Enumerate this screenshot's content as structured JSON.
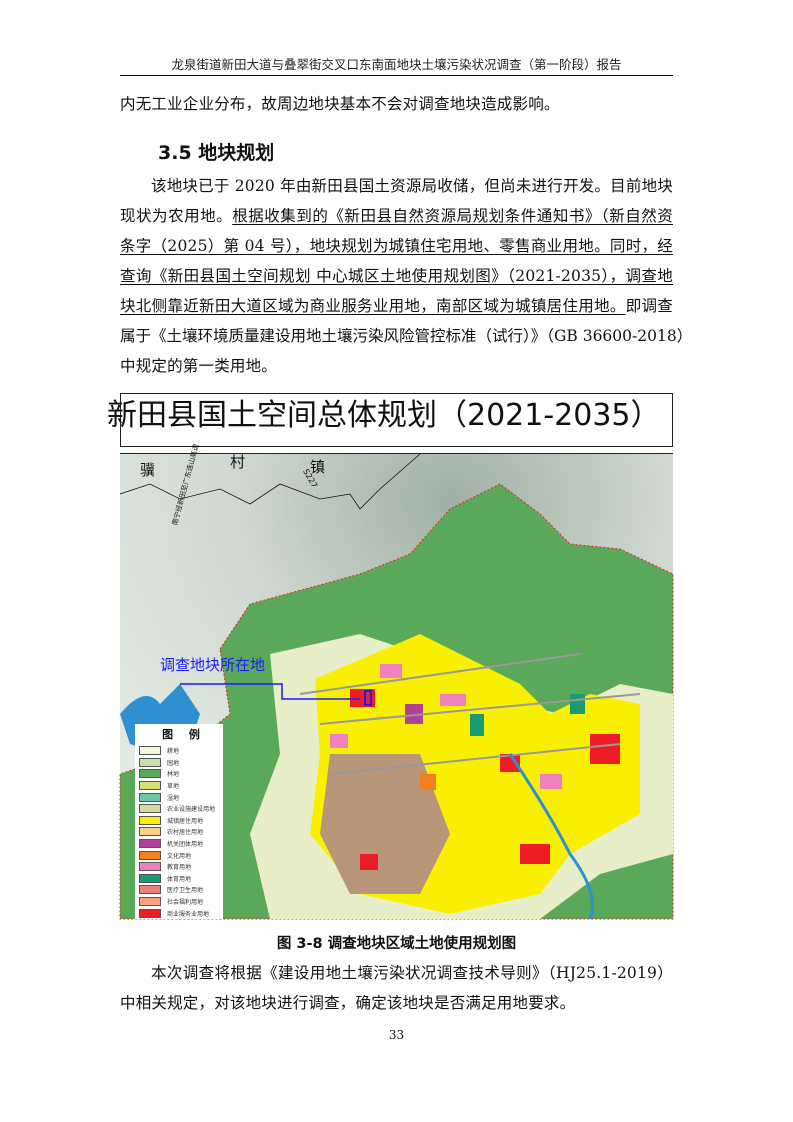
{
  "header": "龙泉街道新田大道与叠翠街交叉口东南面地块土壤污染状况调查（第一阶段）报告",
  "paragraph_top": "内无工业企业分布，故周边地块基本不会对调查地块造成影响。",
  "section_heading": "3.5 地块规划",
  "planning_paragraph": {
    "l1": "该地块已于 2020 年由新田县国土资源局收储，但尚未进行开发。目前地块",
    "l2a": "现状为农用地。",
    "l2b": "根据收集到的《新田县自然资源局规划条件通知书》（新自然资",
    "l3": "条字（2025）第 04 号），地块规划为城镇住宅用地、零售商业用地。同时，经",
    "l4": "查询《新田县国土空间规划 中心城区土地使用规划图》（2021-2035），调查地",
    "l5a": "块北侧靠近新田大道区域为商业服务业用地，南部区域为城镇居住用地。",
    "l5b": "即调查",
    "l6": "属于《土壤环境质量建设用地土壤污染风险管控标准（试行）》（GB 36600-2018）",
    "l7": "中规定的第一类用地。"
  },
  "figure": {
    "map_title": "新田县国土空间总体规划（2021-2035）",
    "place_labels": [
      "骥",
      "村",
      "镇"
    ],
    "road_label": "S227",
    "highway_label": "南宁经新田至广东连山高速",
    "site_label": "调查地块所在地",
    "site_label_color": "#1a1aff",
    "legend_title": "图 例",
    "legend": [
      {
        "label": "耕地",
        "color": "#f3f5dc"
      },
      {
        "label": "园地",
        "color": "#c5e0a5"
      },
      {
        "label": "林地",
        "color": "#5aa85a"
      },
      {
        "label": "草地",
        "color": "#d3e07a"
      },
      {
        "label": "湿地",
        "color": "#68c8a8"
      },
      {
        "label": "农业设施建设用地",
        "color": "#d8d6a0"
      },
      {
        "label": "城镇居住用地",
        "color": "#f8f000"
      },
      {
        "label": "农村居住用地",
        "color": "#f8d088"
      },
      {
        "label": "机关团体用地",
        "color": "#b0409a"
      },
      {
        "label": "文化用地",
        "color": "#f08020"
      },
      {
        "label": "教育用地",
        "color": "#f080c0"
      },
      {
        "label": "体育用地",
        "color": "#1a9a70"
      },
      {
        "label": "医疗卫生用地",
        "color": "#f08080"
      },
      {
        "label": "社会福利用地",
        "color": "#f8a080"
      },
      {
        "label": "商业服务业用地",
        "color": "#ee1c24"
      }
    ],
    "caption": "图 3-8  调查地块区域土地使用规划图"
  },
  "paragraph_bottom": {
    "l1": "本次调查将根据《建设用地土壤污染状况调查技术导则》（HJ25.1-2019）",
    "l2": "中相关规定，对该地块进行调查，确定该地块是否满足用地要求。"
  },
  "page_number": "33"
}
